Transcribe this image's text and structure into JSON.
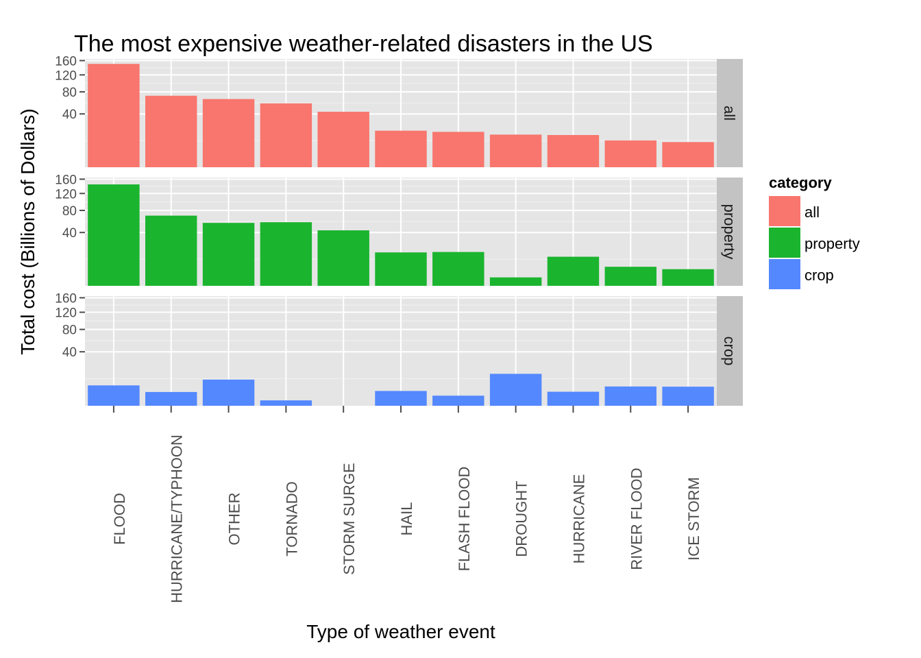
{
  "chart_data": {
    "type": "bar",
    "title": "The most expensive weather-related disasters in the US",
    "xlabel": "Type of weather event",
    "ylabel": "Total cost (Billions of Dollars)",
    "y_scale": "sqrt",
    "ylim": [
      0,
      165
    ],
    "y_ticks": [
      40,
      80,
      120,
      160
    ],
    "grid": true,
    "legend_placement": "right",
    "legend_title": "category",
    "categories": [
      "FLOOD",
      "HURRICANE/TYPHOON",
      "OTHER",
      "TORNADO",
      "STORM SURGE",
      "HAIL",
      "FLASH FLOOD",
      "DROUGHT",
      "HURRICANE",
      "RIVER FLOOD",
      "ICE STORM"
    ],
    "series": [
      {
        "name": "all",
        "color": "#f8766d",
        "values": [
          150.3,
          71.9,
          65.4,
          57.4,
          43.3,
          18.8,
          17.6,
          15.0,
          14.6,
          10.1,
          8.9
        ]
      },
      {
        "name": "property",
        "color": "#1bb42f",
        "values": [
          144.7,
          69.3,
          55.7,
          56.9,
          43.3,
          15.7,
          16.1,
          1.0,
          11.9,
          5.1,
          3.9
        ]
      },
      {
        "name": "crop",
        "color": "#5488ff",
        "values": [
          5.7,
          2.6,
          9.4,
          0.4,
          0.0,
          3.0,
          1.4,
          14.0,
          2.7,
          5.1,
          5.0
        ]
      }
    ]
  }
}
